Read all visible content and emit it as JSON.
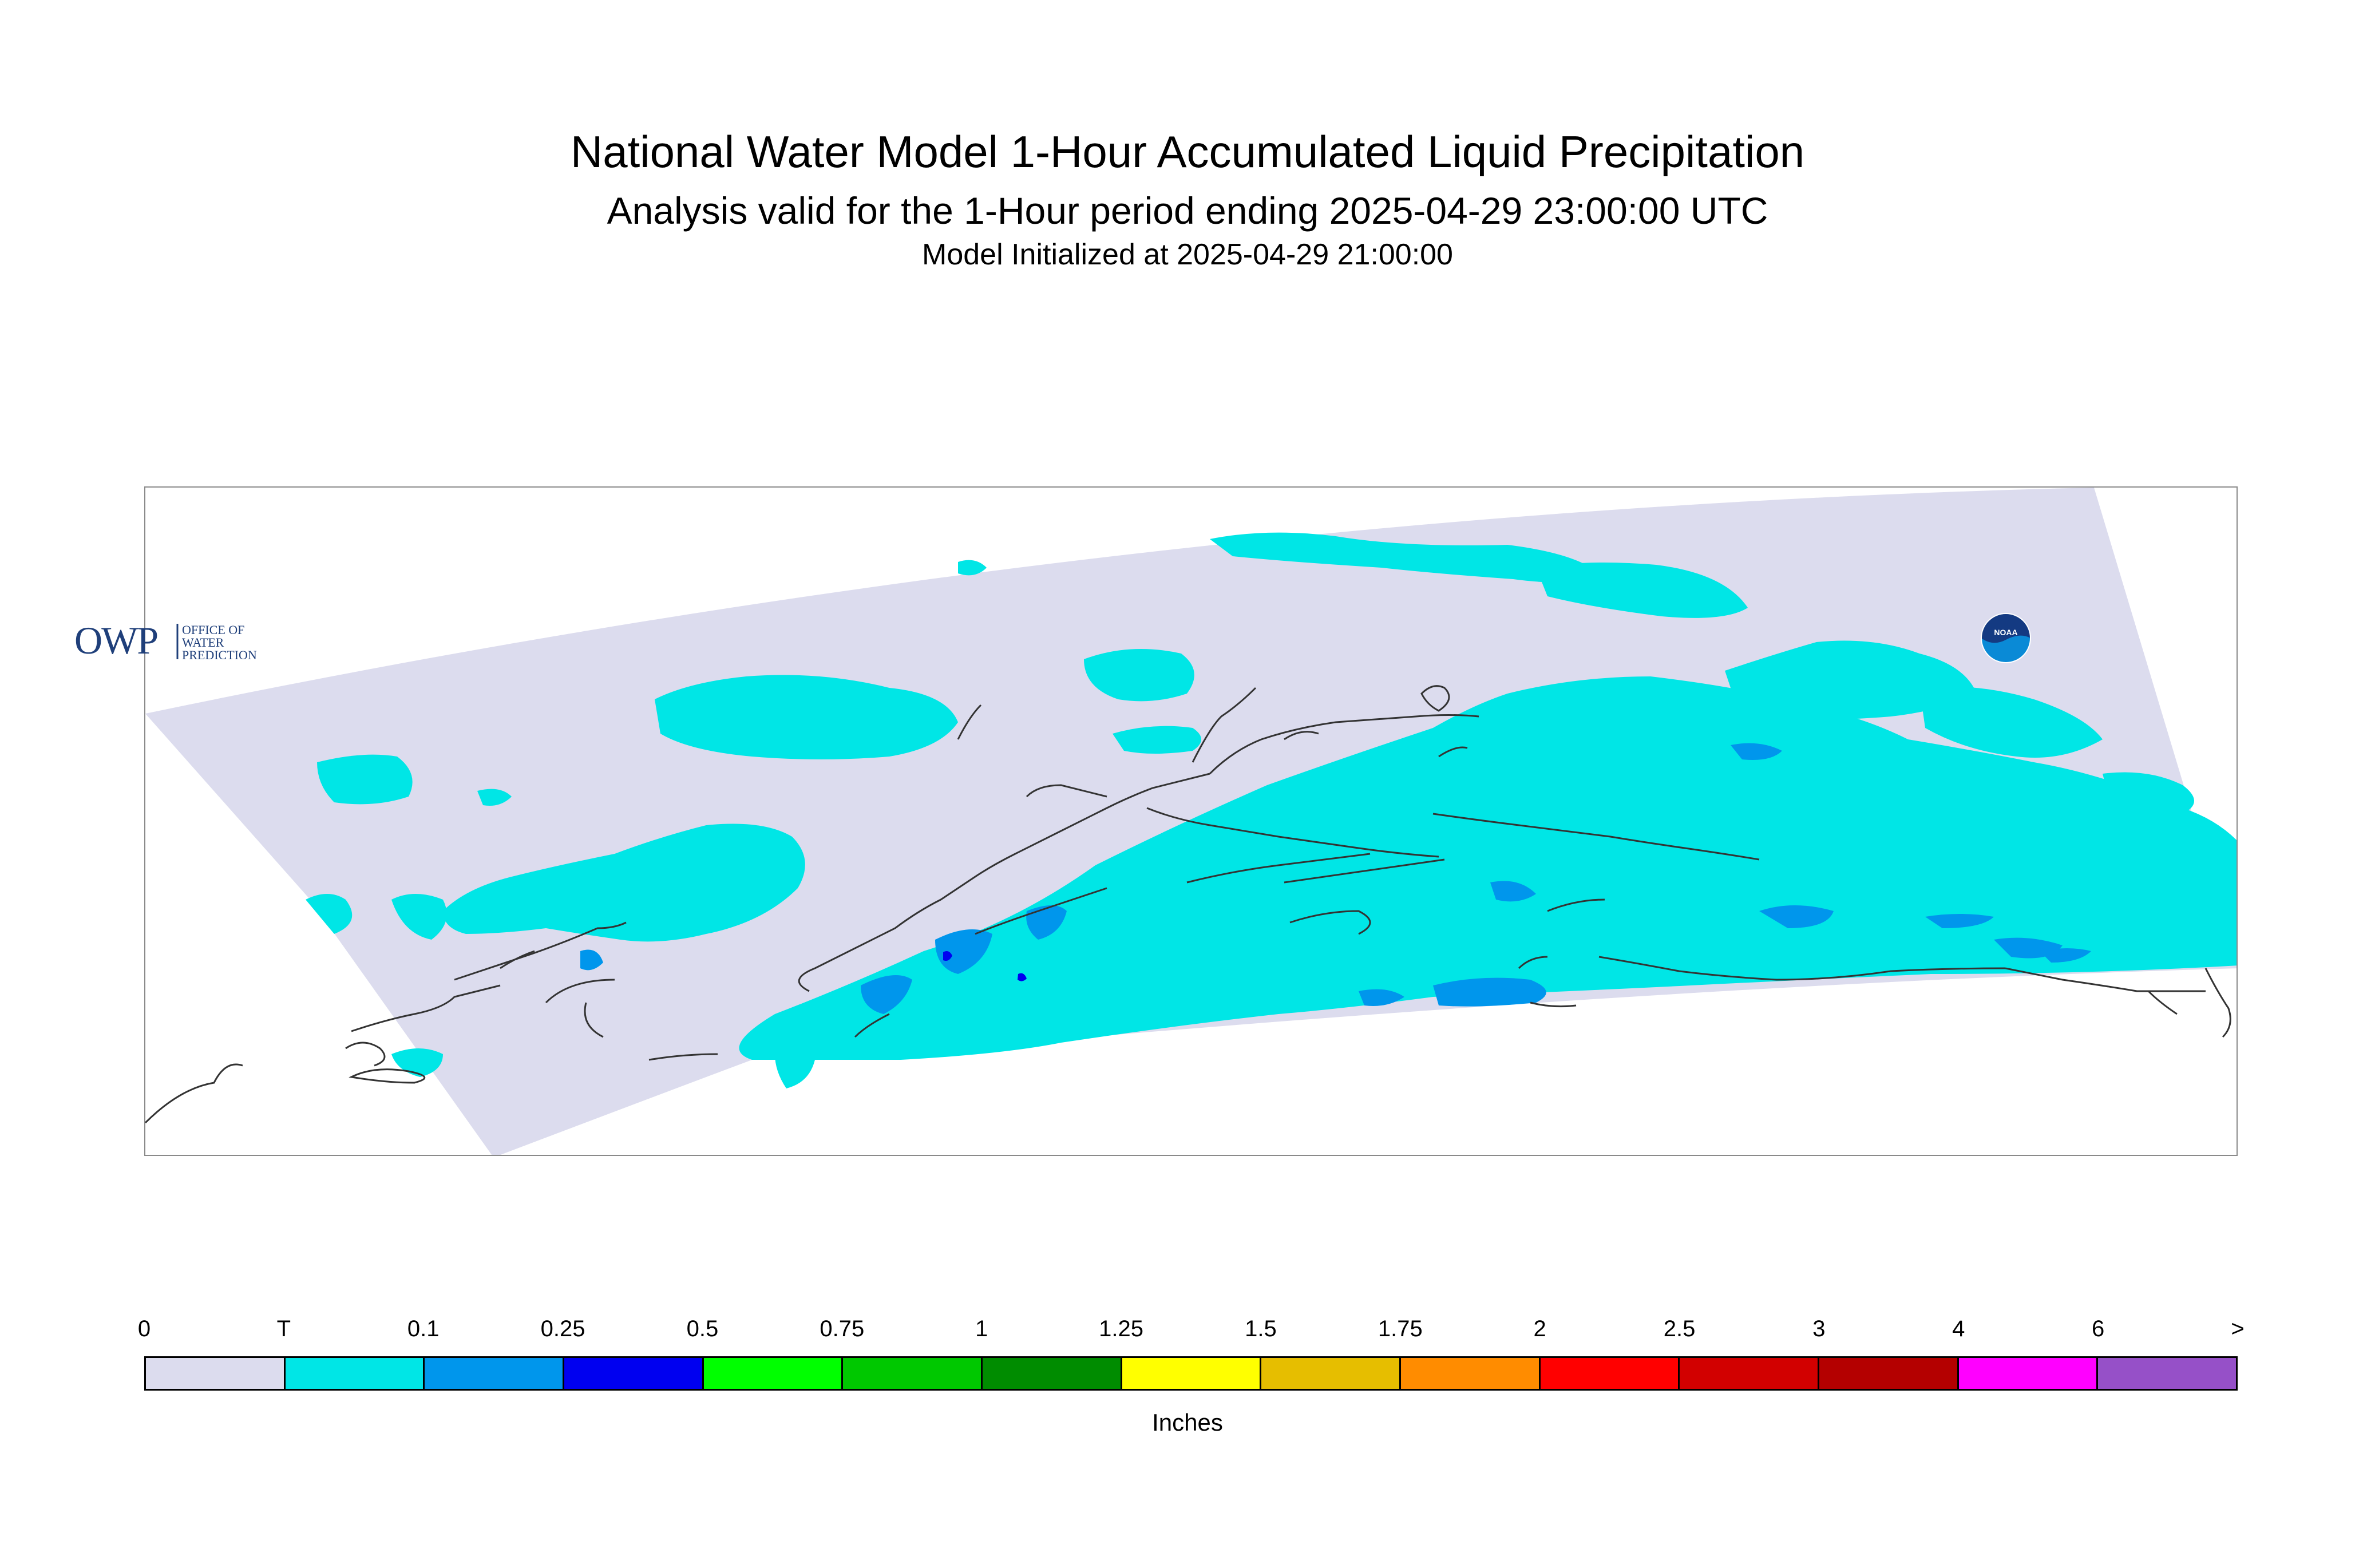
{
  "title": "National Water Model 1-Hour Accumulated Liquid Precipitation",
  "subtitle": "Analysis valid for the 1-Hour period ending 2025-04-29 23:00:00 UTC",
  "init_text": "Model Initialized at 2025-04-29 21:00:00",
  "logos": {
    "owp_letters": "OWP",
    "owp_caption": [
      "OFFICE OF",
      "WATER",
      "PREDICTION"
    ],
    "noaa_text": "NOAA"
  },
  "legend": {
    "units": "Inches",
    "ticks": [
      "0",
      "T",
      "0.1",
      "0.25",
      "0.5",
      "0.75",
      "1",
      "1.25",
      "1.5",
      "1.75",
      "2",
      "2.5",
      "3",
      "4",
      "6",
      ">"
    ],
    "colors": [
      "#dcdcee",
      "#00e6e6",
      "#0096ec",
      "#0000f0",
      "#00ff00",
      "#00c800",
      "#008c00",
      "#ffff00",
      "#e6be00",
      "#ff8c00",
      "#ff0000",
      "#d20000",
      "#b40000",
      "#ff00ff",
      "#9650c8"
    ]
  },
  "colors": {
    "domain_background": "#dcdcee",
    "light_precip": "#00e6e6",
    "moderate_precip": "#0096ec",
    "heavy_precip": "#0000f0",
    "coastline": "#333333",
    "frame": "#8a8a8a"
  }
}
